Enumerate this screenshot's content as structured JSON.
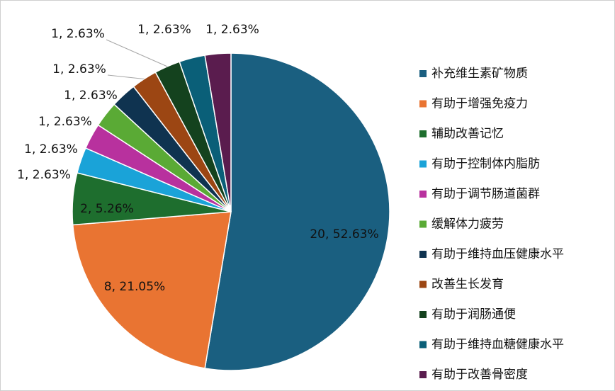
{
  "chart_data": {
    "type": "pie",
    "categories": [
      "补充维生素矿物质",
      "有助于增强免疫力",
      "辅助改善记忆",
      "有助于控制体内脂肪",
      "有助于调节肠道菌群",
      "缓解体力疲劳",
      "有助于维持血压健康水平",
      "改善生长发育",
      "有助于润肠通便",
      "有助于维持血糖健康水平",
      "有助于改善骨密度"
    ],
    "values": [
      20,
      8,
      2,
      1,
      1,
      1,
      1,
      1,
      1,
      1,
      1
    ],
    "value_labels": [
      "20, 52.63%",
      "8, 21.05%",
      "2, 5.26%",
      "1, 2.63%",
      "1, 2.63%",
      "1, 2.63%",
      "1, 2.63%",
      "1, 2.63%",
      "1, 2.63%",
      "1, 2.63%",
      "1, 2.63%"
    ],
    "colors": [
      "#1a5f80",
      "#e97432",
      "#1e6e2e",
      "#1aa3d8",
      "#b8319e",
      "#5aaa35",
      "#0f3350",
      "#9c4613",
      "#14421e",
      "#0a5f78",
      "#5a1c4e"
    ],
    "legend": "right"
  }
}
